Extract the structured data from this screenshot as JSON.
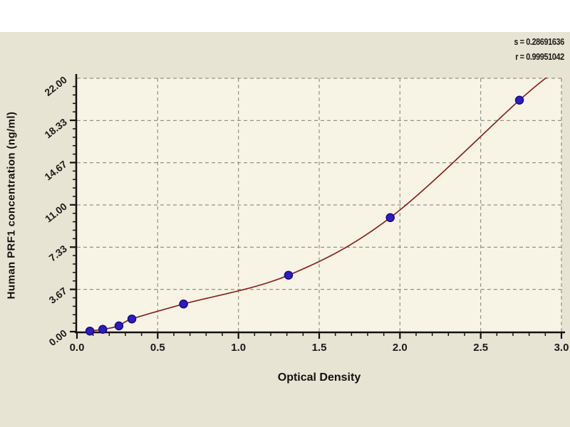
{
  "colors": {
    "page_top": "#ffffff",
    "canvas_bg": "#e8e4d3",
    "plot_bg": "#f7f4e5",
    "axis": "#111111",
    "grid": "#92928a",
    "curve": "#8b2222",
    "marker_fill": "#2d1cc4",
    "marker_edge": "#150a85",
    "text": "#1a1a1a"
  },
  "chart_data": {
    "type": "scatter",
    "title": "",
    "xlabel": "Optical Density",
    "ylabel": "Human PRF1 concentration (ng/ml)",
    "xlim": [
      0,
      3.0
    ],
    "ylim": [
      0,
      22.0
    ],
    "x_tick_labels": [
      "0.0",
      "0.5",
      "1.0",
      "1.5",
      "2.0",
      "2.5",
      "3.0"
    ],
    "y_tick_labels": [
      "0.00",
      "3.67",
      "7.33",
      "11.00",
      "14.67",
      "18.33",
      "22.00"
    ],
    "x_minor_divisions": 5,
    "y_minor_divisions": 5,
    "grid": "dashed, both axes at major ticks",
    "legend": "none",
    "series": [
      {
        "name": "standard points",
        "type": "scatter",
        "points": [
          {
            "x": 0.08,
            "y": 0.05
          },
          {
            "x": 0.16,
            "y": 0.2
          },
          {
            "x": 0.26,
            "y": 0.5
          },
          {
            "x": 0.34,
            "y": 1.1
          },
          {
            "x": 0.66,
            "y": 2.4
          },
          {
            "x": 1.31,
            "y": 4.9
          },
          {
            "x": 1.94,
            "y": 9.9
          },
          {
            "x": 2.74,
            "y": 20.1
          }
        ]
      },
      {
        "name": "fitted curve",
        "type": "line",
        "start": {
          "x": 0.03,
          "y": -0.1
        },
        "end": {
          "x": 2.96,
          "y": 22.6
        }
      }
    ],
    "stats": {
      "s": "s = 0.28691636",
      "r": "r = 0.99951042"
    }
  }
}
